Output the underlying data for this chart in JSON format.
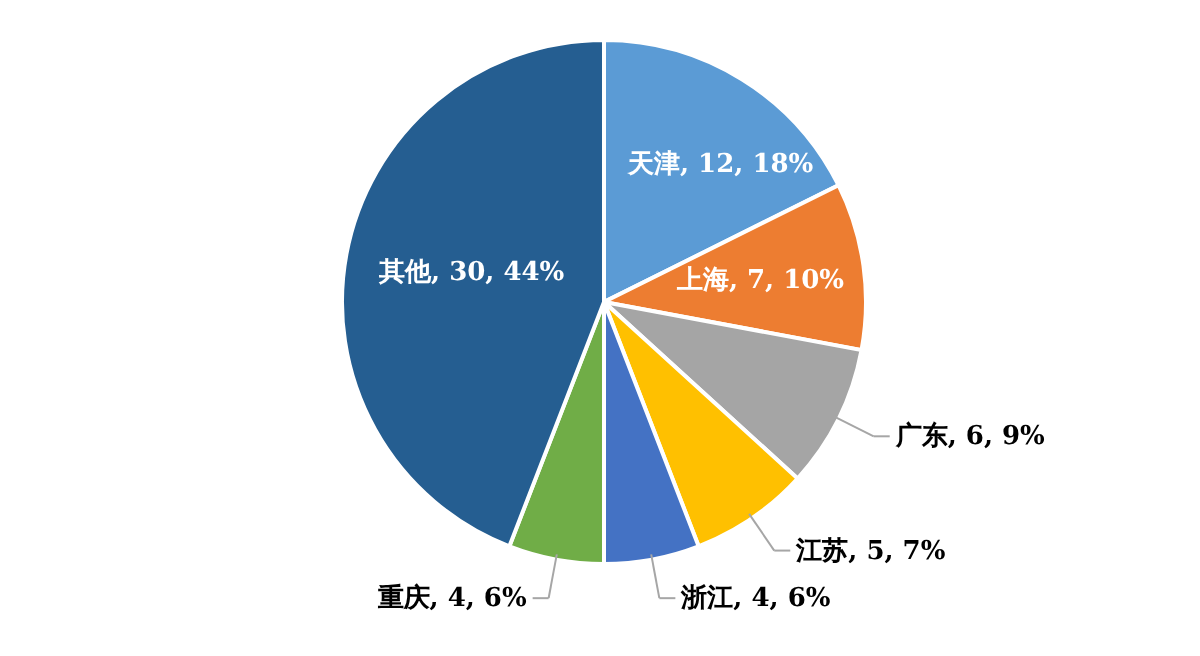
{
  "chart_data": {
    "type": "pie",
    "categories": [
      "天津",
      "上海",
      "广东",
      "江苏",
      "浙江",
      "重庆",
      "其他"
    ],
    "values": [
      12,
      7,
      6,
      5,
      4,
      4,
      30
    ],
    "value_labels": [
      "12, 18%",
      "7, 10%",
      "6, 9%",
      "5, 7%",
      "4, 6%",
      "4, 6%",
      "30, 44%"
    ],
    "colors": [
      "#5b9bd5",
      "#ed7d31",
      "#a5a5a5",
      "#ffc000",
      "#4472c4",
      "#70ad47",
      "#255e91"
    ]
  }
}
